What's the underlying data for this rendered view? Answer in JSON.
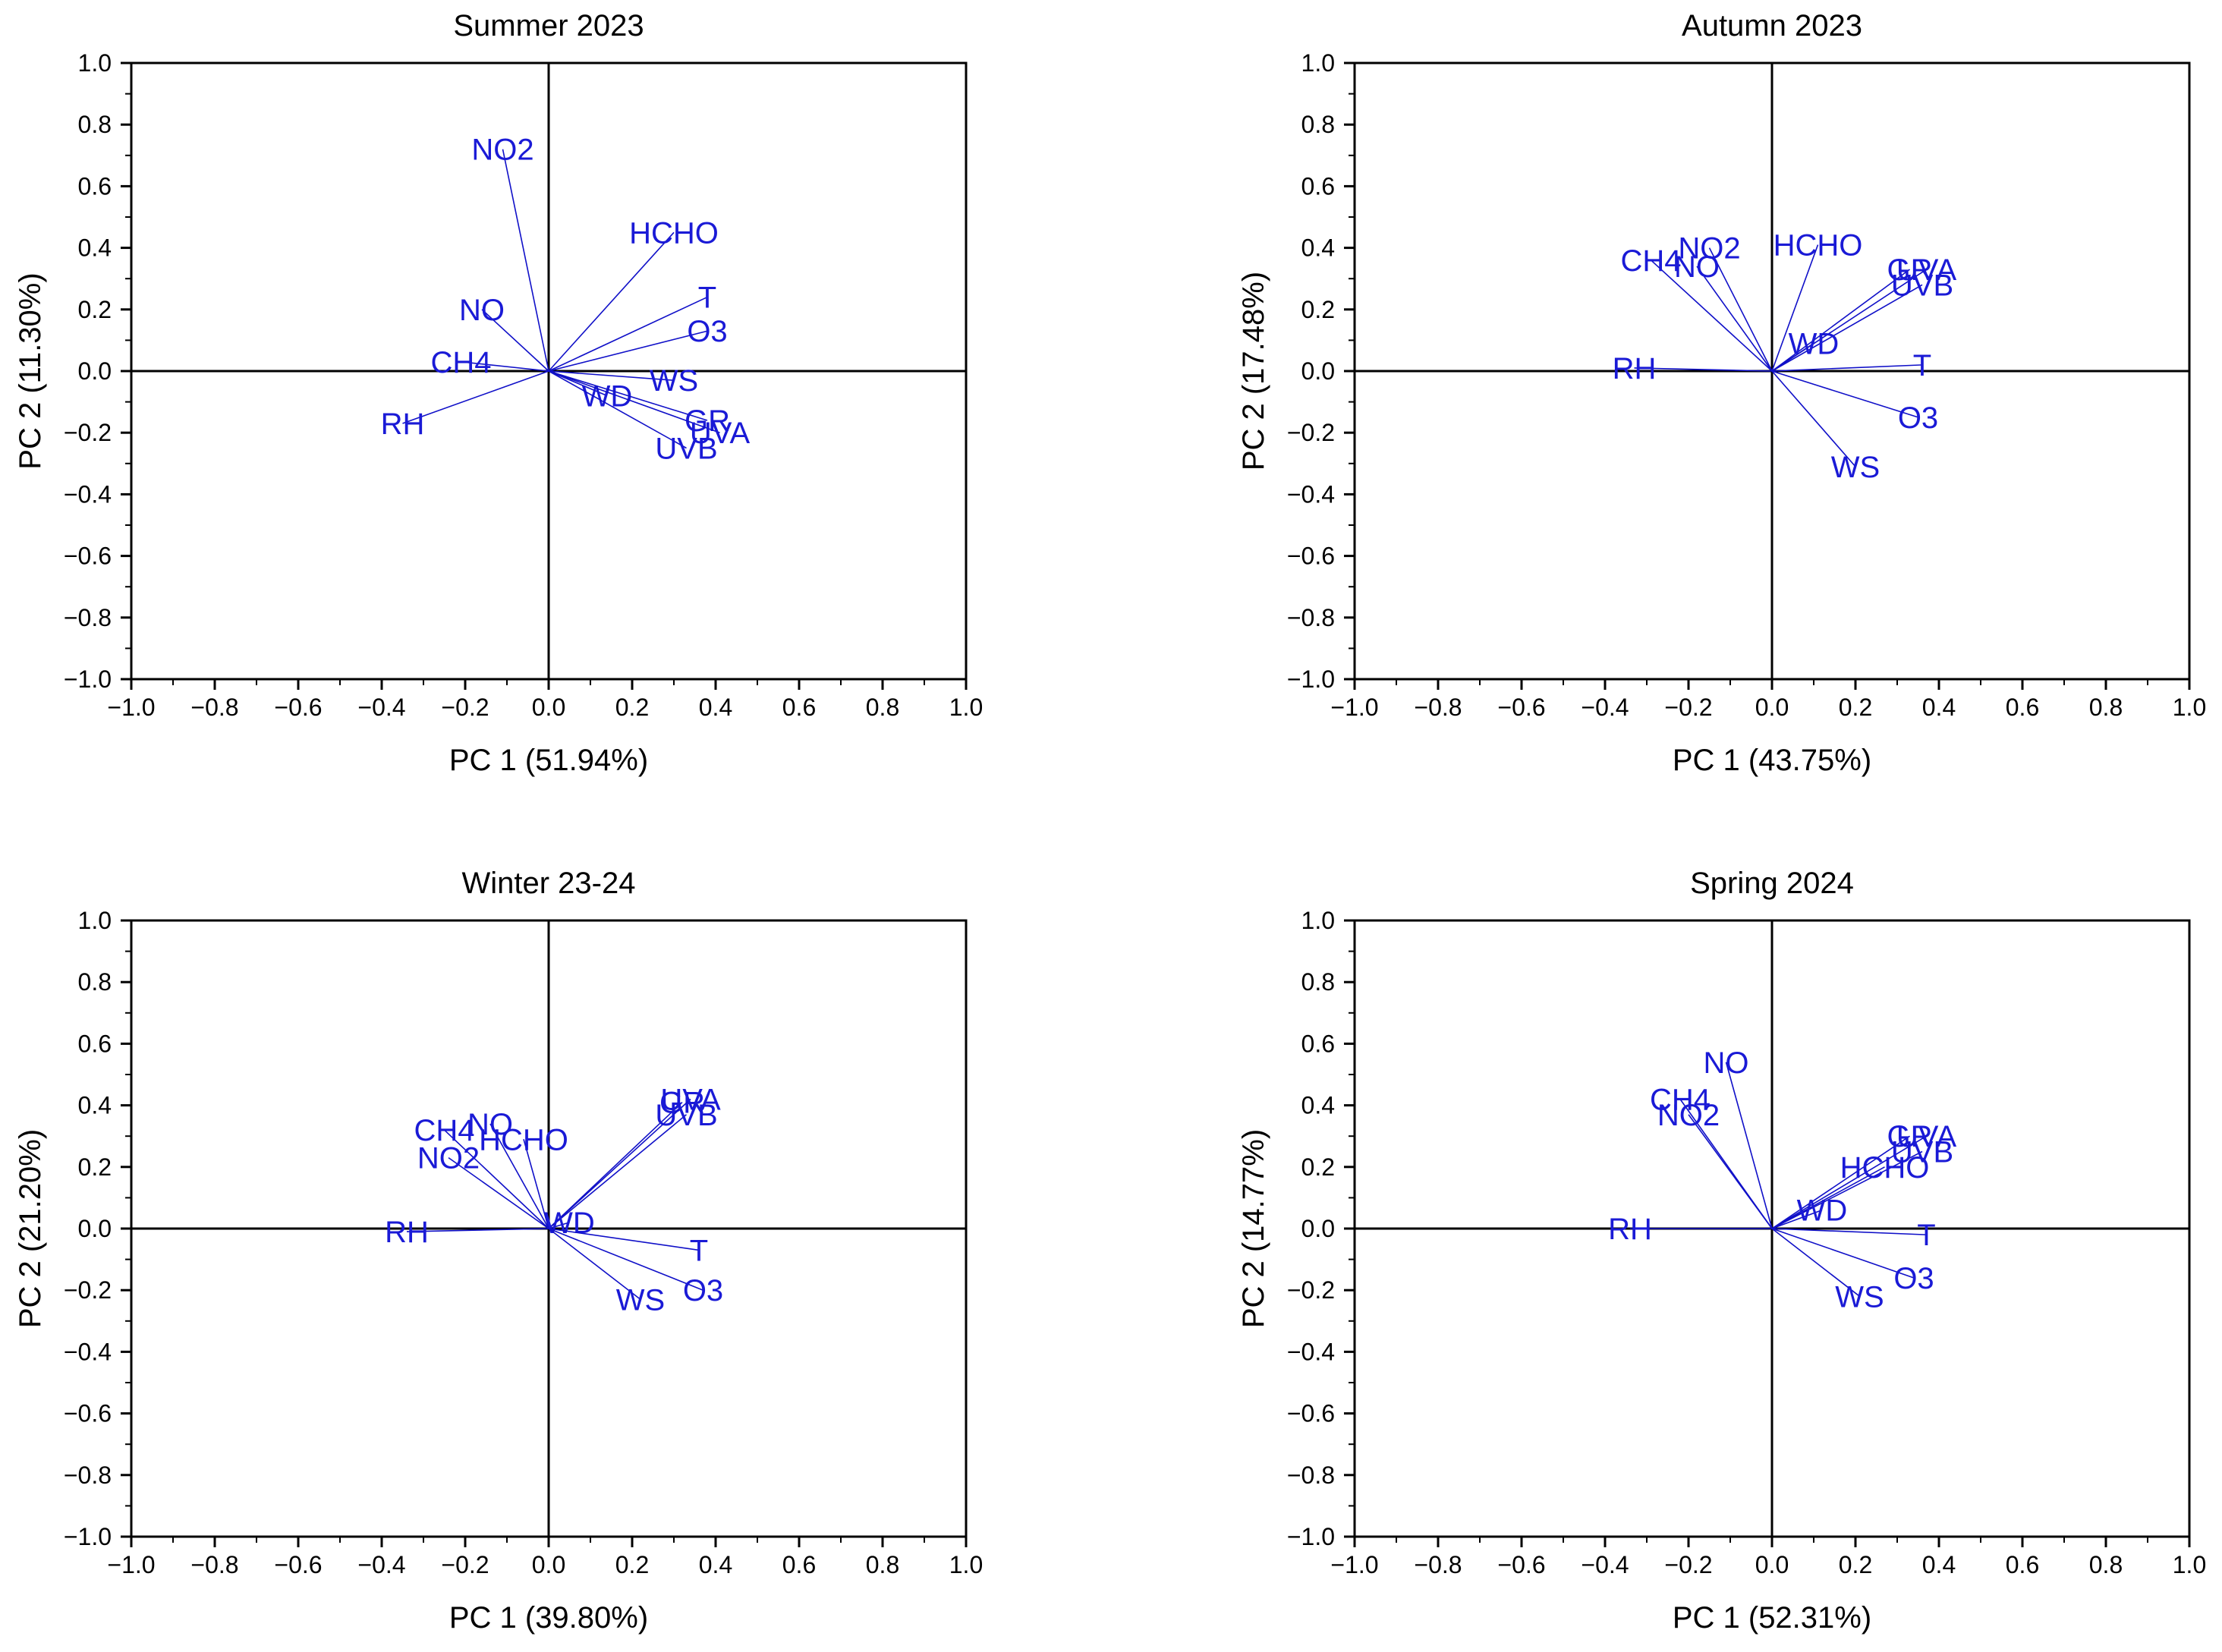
{
  "colors": {
    "vector": "#1010c8",
    "label": "#1a1ad6",
    "axis": "#000000"
  },
  "chart_data": [
    {
      "type": "scatter",
      "title": "Summer 2023",
      "xlabel": "PC 1 (51.94%)",
      "ylabel": "PC 2 (11.30%)",
      "xlim": [
        -1.0,
        1.0
      ],
      "ylim": [
        -1.0,
        1.0
      ],
      "xticks": [
        "−1.0",
        "−0.8",
        "−0.6",
        "−0.4",
        "−0.2",
        "0.0",
        "0.2",
        "0.4",
        "0.6",
        "0.8",
        "1.0"
      ],
      "yticks": [
        "1.0",
        "0.8",
        "0.6",
        "0.4",
        "0.2",
        "0.0",
        "−0.2",
        "−0.4",
        "−0.6",
        "−0.8",
        "−1.0"
      ],
      "loadings": [
        {
          "label": "NO2",
          "x": -0.11,
          "y": 0.72
        },
        {
          "label": "HCHO",
          "x": 0.3,
          "y": 0.45
        },
        {
          "label": "T",
          "x": 0.38,
          "y": 0.24
        },
        {
          "label": "O3",
          "x": 0.38,
          "y": 0.13
        },
        {
          "label": "NO",
          "x": -0.16,
          "y": 0.2
        },
        {
          "label": "CH4",
          "x": -0.21,
          "y": 0.03
        },
        {
          "label": "WS",
          "x": 0.3,
          "y": -0.03
        },
        {
          "label": "WD",
          "x": 0.14,
          "y": -0.08
        },
        {
          "label": "GR",
          "x": 0.38,
          "y": -0.16
        },
        {
          "label": "UVA",
          "x": 0.41,
          "y": -0.2
        },
        {
          "label": "UVB",
          "x": 0.33,
          "y": -0.25
        },
        {
          "label": "RH",
          "x": -0.35,
          "y": -0.17
        }
      ]
    },
    {
      "type": "scatter",
      "title": "Autumn 2023",
      "xlabel": "PC 1 (43.75%)",
      "ylabel": "PC 2 (17.48%)",
      "xlim": [
        -1.0,
        1.0
      ],
      "ylim": [
        -1.0,
        1.0
      ],
      "xticks": [
        "−1.0",
        "−0.8",
        "−0.6",
        "−0.4",
        "−0.2",
        "0.0",
        "0.2",
        "0.4",
        "0.6",
        "0.8",
        "1.0"
      ],
      "yticks": [
        "1.0",
        "0.8",
        "0.6",
        "0.4",
        "0.2",
        "0.0",
        "−0.2",
        "−0.4",
        "−0.6",
        "−0.8",
        "−1.0"
      ],
      "loadings": [
        {
          "label": "NO2",
          "x": -0.15,
          "y": 0.4
        },
        {
          "label": "HCHO",
          "x": 0.11,
          "y": 0.41
        },
        {
          "label": "CH4",
          "x": -0.29,
          "y": 0.36
        },
        {
          "label": "NO",
          "x": -0.18,
          "y": 0.34
        },
        {
          "label": "GR",
          "x": 0.33,
          "y": 0.33
        },
        {
          "label": "UVA",
          "x": 0.37,
          "y": 0.33
        },
        {
          "label": "UVB",
          "x": 0.36,
          "y": 0.28
        },
        {
          "label": "WD",
          "x": 0.1,
          "y": 0.09
        },
        {
          "label": "T",
          "x": 0.36,
          "y": 0.02
        },
        {
          "label": "RH",
          "x": -0.33,
          "y": 0.01
        },
        {
          "label": "O3",
          "x": 0.35,
          "y": -0.15
        },
        {
          "label": "WS",
          "x": 0.2,
          "y": -0.31
        }
      ]
    },
    {
      "type": "scatter",
      "title": "Winter 23-24",
      "xlabel": "PC 1 (39.80%)",
      "ylabel": "PC 2 (21.20%)",
      "xlim": [
        -1.0,
        1.0
      ],
      "ylim": [
        -1.0,
        1.0
      ],
      "xticks": [
        "−1.0",
        "−0.8",
        "−0.6",
        "−0.4",
        "−0.2",
        "0.0",
        "0.2",
        "0.4",
        "0.6",
        "0.8",
        "1.0"
      ],
      "yticks": [
        "1.0",
        "0.8",
        "0.6",
        "0.4",
        "0.2",
        "0.0",
        "−0.2",
        "−0.4",
        "−0.6",
        "−0.8",
        "−1.0"
      ],
      "loadings": [
        {
          "label": "GR",
          "x": 0.32,
          "y": 0.41
        },
        {
          "label": "UVA",
          "x": 0.34,
          "y": 0.42
        },
        {
          "label": "UVB",
          "x": 0.33,
          "y": 0.37
        },
        {
          "label": "CH4",
          "x": -0.25,
          "y": 0.32
        },
        {
          "label": "NO",
          "x": -0.14,
          "y": 0.34
        },
        {
          "label": "HCHO",
          "x": -0.06,
          "y": 0.29
        },
        {
          "label": "NO2",
          "x": -0.24,
          "y": 0.23
        },
        {
          "label": "WD",
          "x": 0.05,
          "y": 0.02
        },
        {
          "label": "RH",
          "x": -0.34,
          "y": -0.01
        },
        {
          "label": "T",
          "x": 0.36,
          "y": -0.07
        },
        {
          "label": "O3",
          "x": 0.37,
          "y": -0.2
        },
        {
          "label": "WS",
          "x": 0.22,
          "y": -0.23
        }
      ]
    },
    {
      "type": "scatter",
      "title": "Spring 2024",
      "xlabel": "PC 1 (52.31%)",
      "ylabel": "PC 2 (14.77%)",
      "xlim": [
        -1.0,
        1.0
      ],
      "ylim": [
        -1.0,
        1.0
      ],
      "xticks": [
        "−1.0",
        "−0.8",
        "−0.6",
        "−0.4",
        "−0.2",
        "0.0",
        "0.2",
        "0.4",
        "0.6",
        "0.8",
        "1.0"
      ],
      "yticks": [
        "1.0",
        "0.8",
        "0.6",
        "0.4",
        "0.2",
        "0.0",
        "−0.2",
        "−0.4",
        "−0.6",
        "−0.8",
        "−1.0"
      ],
      "loadings": [
        {
          "label": "NO",
          "x": -0.11,
          "y": 0.54
        },
        {
          "label": "CH4",
          "x": -0.22,
          "y": 0.42
        },
        {
          "label": "NO2",
          "x": -0.2,
          "y": 0.37
        },
        {
          "label": "GR",
          "x": 0.33,
          "y": 0.3
        },
        {
          "label": "UVA",
          "x": 0.37,
          "y": 0.3
        },
        {
          "label": "UVB",
          "x": 0.36,
          "y": 0.25
        },
        {
          "label": "HCHO",
          "x": 0.27,
          "y": 0.2
        },
        {
          "label": "WD",
          "x": 0.12,
          "y": 0.06
        },
        {
          "label": "RH",
          "x": -0.34,
          "y": 0.0
        },
        {
          "label": "T",
          "x": 0.37,
          "y": -0.02
        },
        {
          "label": "O3",
          "x": 0.34,
          "y": -0.16
        },
        {
          "label": "WS",
          "x": 0.21,
          "y": -0.22
        }
      ]
    }
  ]
}
